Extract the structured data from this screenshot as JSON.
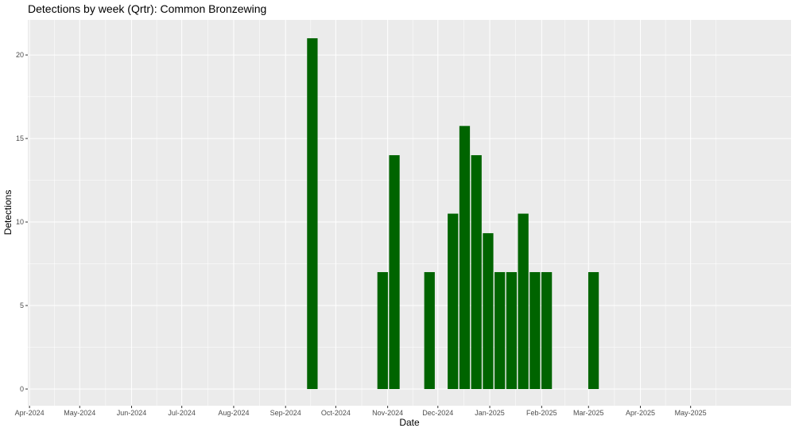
{
  "chart_data": {
    "type": "bar",
    "title": "Detections by week (Qrtr): Common Bronzewing",
    "xlabel": "Date",
    "ylabel": "Detections",
    "ylim": [
      -1,
      22.1
    ],
    "yticks": [
      0,
      5,
      10,
      15,
      20
    ],
    "xlim": [
      "2024-03-31",
      "2025-06-30"
    ],
    "xticks": [
      {
        "date": "2024-04-01",
        "label": "Apr-2024"
      },
      {
        "date": "2024-05-01",
        "label": "May-2024"
      },
      {
        "date": "2024-06-01",
        "label": "Jun-2024"
      },
      {
        "date": "2024-07-01",
        "label": "Jul-2024"
      },
      {
        "date": "2024-08-01",
        "label": "Aug-2024"
      },
      {
        "date": "2024-09-01",
        "label": "Sep-2024"
      },
      {
        "date": "2024-10-01",
        "label": "Oct-2024"
      },
      {
        "date": "2024-11-01",
        "label": "Nov-2024"
      },
      {
        "date": "2024-12-01",
        "label": "Dec-2024"
      },
      {
        "date": "2025-01-01",
        "label": "Jan-2025"
      },
      {
        "date": "2025-02-01",
        "label": "Feb-2025"
      },
      {
        "date": "2025-03-01",
        "label": "Mar-2025"
      },
      {
        "date": "2025-04-01",
        "label": "Apr-2025"
      },
      {
        "date": "2025-05-01",
        "label": "May-2025"
      }
    ],
    "bar_color": "#006400",
    "panel_color": "#ebebeb",
    "grid": true,
    "bars": [
      {
        "week": "2024-09-17",
        "value": 21
      },
      {
        "week": "2024-10-29",
        "value": 7
      },
      {
        "week": "2024-11-05",
        "value": 14
      },
      {
        "week": "2024-11-26",
        "value": 7
      },
      {
        "week": "2024-12-10",
        "value": 10.5
      },
      {
        "week": "2024-12-17",
        "value": 15.75
      },
      {
        "week": "2024-12-24",
        "value": 14
      },
      {
        "week": "2024-12-31",
        "value": 9.33
      },
      {
        "week": "2025-01-07",
        "value": 7
      },
      {
        "week": "2025-01-14",
        "value": 7
      },
      {
        "week": "2025-01-21",
        "value": 10.5
      },
      {
        "week": "2025-01-28",
        "value": 7
      },
      {
        "week": "2025-02-04",
        "value": 7
      },
      {
        "week": "2025-03-04",
        "value": 7
      }
    ]
  }
}
